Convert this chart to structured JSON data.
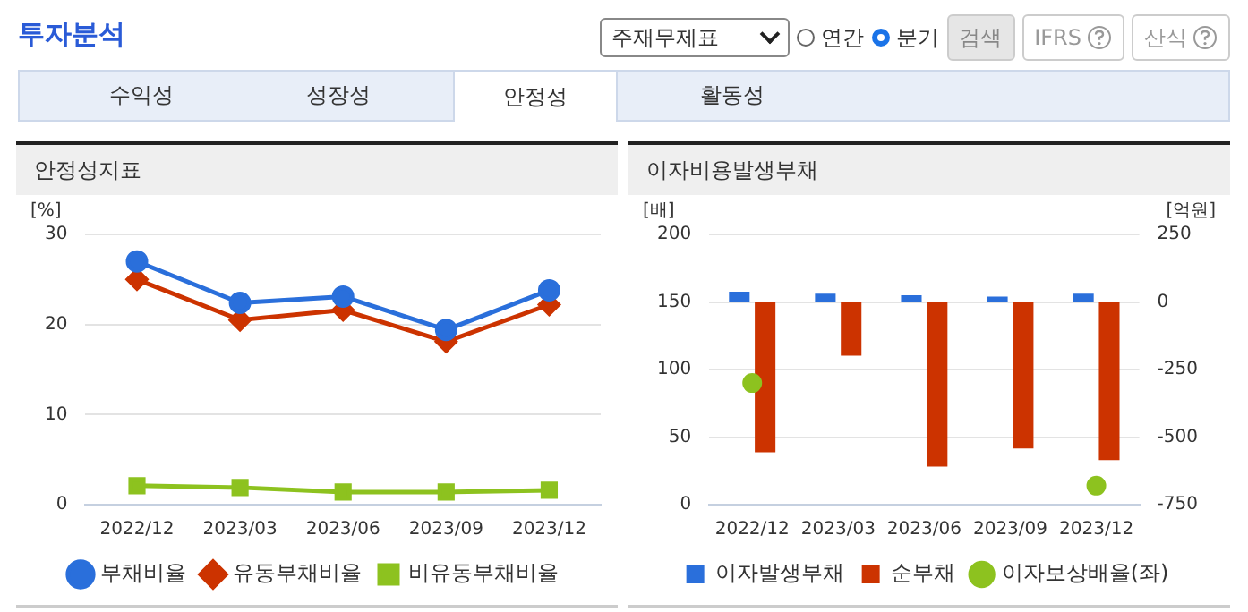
{
  "chart_data": [
    {
      "type": "other",
      "title": "투자분석",
      "annotations": [
        "주재무제표",
        "연간",
        "분기",
        "검색",
        "IFRS",
        "산식",
        "수익성",
        "성장성",
        "안정성",
        "활동성"
      ]
    },
    {
      "type": "line",
      "title": "안정성지표",
      "ylabel": "[%]",
      "categories": [
        "2022/12",
        "2023/03",
        "2023/06",
        "2023/09",
        "2023/12"
      ],
      "ylim": [
        0,
        30
      ],
      "yticks": [
        0,
        10,
        20,
        30
      ],
      "grid": "y",
      "legend": "bottom",
      "series": [
        {
          "name": "부채비율",
          "color": "#2a6fdb",
          "marker": "circle",
          "values": [
            27.0,
            22.4,
            23.1,
            19.4,
            23.8
          ]
        },
        {
          "name": "유동부채비율",
          "color": "#cc3300",
          "marker": "diamond",
          "values": [
            25.0,
            20.5,
            21.6,
            18.1,
            22.2
          ]
        },
        {
          "name": "비유동부채비율",
          "color": "#8dc21f",
          "marker": "square",
          "values": [
            2.1,
            1.9,
            1.4,
            1.4,
            1.6
          ]
        }
      ]
    },
    {
      "type": "bar",
      "title": "이자비용발생부채",
      "ylabel": "[배]",
      "y2label": "[억원]",
      "categories": [
        "2022/12",
        "2023/03",
        "2023/06",
        "2023/09",
        "2023/12"
      ],
      "ylim": [
        0,
        200
      ],
      "yticks": [
        0,
        50,
        100,
        150,
        200
      ],
      "y2lim": [
        -750,
        250
      ],
      "y2ticks": [
        -750,
        -500,
        -250,
        0,
        250
      ],
      "grid": "y",
      "legend": "bottom",
      "series": [
        {
          "name": "이자발생부채",
          "type": "bar",
          "axis": "y2",
          "color": "#2a6fdb",
          "values": [
            38,
            31,
            25,
            20,
            31
          ]
        },
        {
          "name": "순부채",
          "type": "bar",
          "axis": "y2",
          "color": "#cc3300",
          "values": [
            -556,
            -199,
            -609,
            -542,
            -585
          ]
        },
        {
          "name": "이자보상배율(좌)",
          "type": "scatter",
          "axis": "y",
          "color": "#8dc21f",
          "marker": "circle",
          "values": [
            90,
            null,
            null,
            null,
            14
          ]
        }
      ]
    }
  ]
}
